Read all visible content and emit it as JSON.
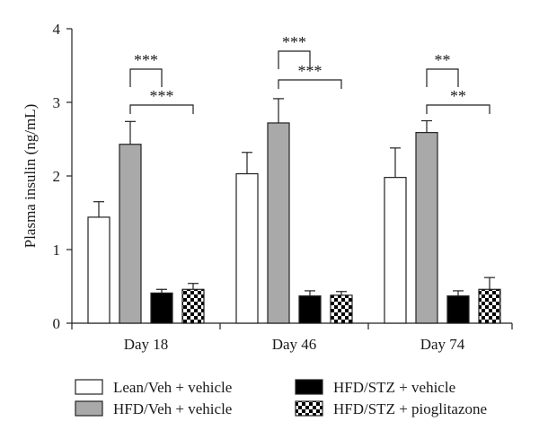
{
  "chart_data": {
    "type": "bar",
    "title": "",
    "xlabel": "",
    "ylabel": "Plasma insulin (ng/mL)",
    "ylim": [
      0,
      4
    ],
    "yticks": [
      "0",
      "1",
      "2",
      "3",
      "4"
    ],
    "categories": [
      "Day 18",
      "Day 46",
      "Day 74"
    ],
    "series": [
      {
        "name": "Lean/Veh + vehicle",
        "fill": "#ffffff",
        "pattern": "none",
        "values": [
          1.44,
          2.03,
          1.98
        ],
        "errors": [
          0.21,
          0.29,
          0.4
        ]
      },
      {
        "name": "HFD/Veh + vehicle",
        "fill": "#a9a9a9",
        "pattern": "none",
        "values": [
          2.43,
          2.72,
          2.59
        ],
        "errors": [
          0.31,
          0.33,
          0.16
        ]
      },
      {
        "name": "HFD/STZ + vehicle",
        "fill": "#000000",
        "pattern": "none",
        "values": [
          0.41,
          0.37,
          0.37
        ],
        "errors": [
          0.05,
          0.07,
          0.07
        ]
      },
      {
        "name": "HFD/STZ + pioglitazone",
        "fill": "checker",
        "pattern": "checkerboard",
        "values": [
          0.46,
          0.38,
          0.46
        ],
        "errors": [
          0.08,
          0.05,
          0.16
        ]
      }
    ],
    "significance": [
      {
        "category": "Day 18",
        "from_series": 1,
        "to_series": 2,
        "label": "***"
      },
      {
        "category": "Day 18",
        "from_series": 1,
        "to_series": 3,
        "label": "***"
      },
      {
        "category": "Day 46",
        "from_series": 1,
        "to_series": 2,
        "label": "***"
      },
      {
        "category": "Day 46",
        "from_series": 1,
        "to_series": 3,
        "label": "***"
      },
      {
        "category": "Day 74",
        "from_series": 1,
        "to_series": 2,
        "label": "**"
      },
      {
        "category": "Day 74",
        "from_series": 1,
        "to_series": 3,
        "label": "**"
      }
    ],
    "grid": false,
    "legend_position": "bottom"
  }
}
